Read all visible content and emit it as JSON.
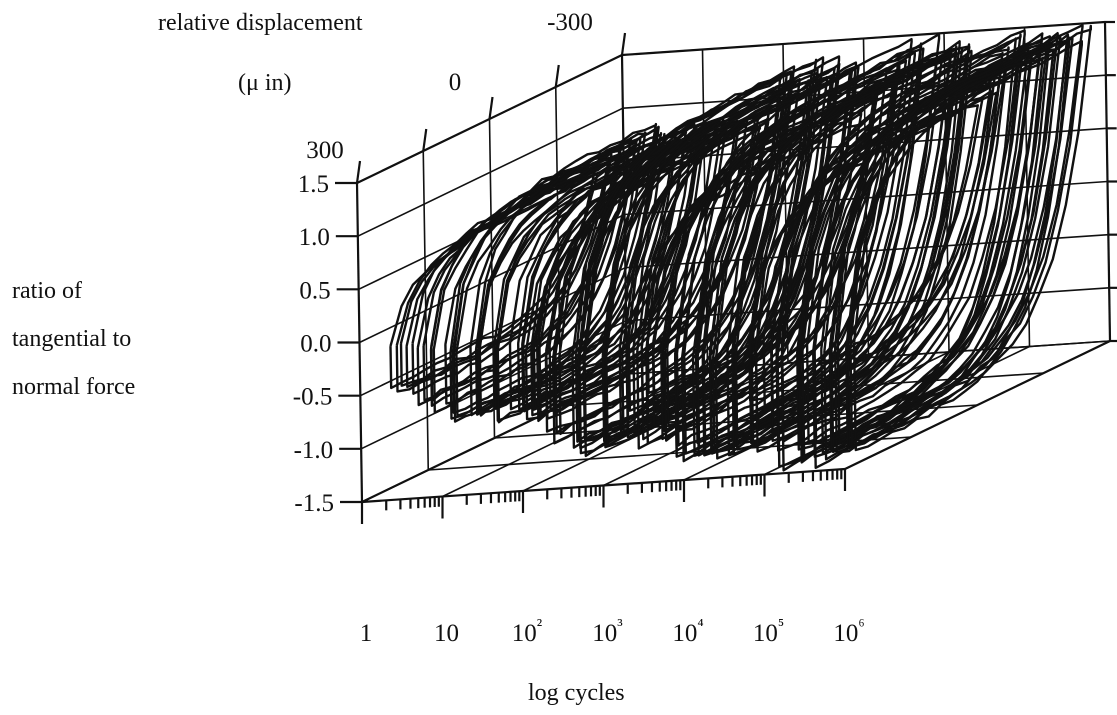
{
  "chart_data": {
    "type": "line",
    "subtype": "3d-hysteresis-loops",
    "title": "",
    "x_axis": {
      "label": "log cycles",
      "scale": "log",
      "tick_labels": [
        "1",
        "10",
        "10²",
        "10³",
        "10⁴",
        "10⁵",
        "10⁶"
      ],
      "range": [
        1,
        1000000
      ]
    },
    "y_axis": {
      "label_lines": [
        "ratio of",
        "tangential to",
        "normal force"
      ],
      "tick_labels": [
        "1.5",
        "1.0",
        "0.5",
        "0.0",
        "-0.5",
        "-1.0",
        "-1.5"
      ],
      "range": [
        -1.5,
        1.5
      ]
    },
    "z_axis": {
      "label": "relative displacement",
      "unit": "(μ in)",
      "tick_labels": [
        "-300",
        "0",
        "300"
      ],
      "range": [
        300,
        -300
      ]
    },
    "groups": [
      {
        "log_start": 0.0,
        "log_end": 1.9,
        "loops": 34,
        "force_ratio_max": 0.9,
        "force_ratio_min": -0.9,
        "displacement_amplitude": 240
      },
      {
        "log_start": 1.9,
        "log_end": 3.2,
        "loops": 30,
        "force_ratio_max": 1.3,
        "force_ratio_min": -1.2,
        "displacement_amplitude": 270
      },
      {
        "log_start": 3.2,
        "log_end": 4.6,
        "loops": 32,
        "force_ratio_max": 1.4,
        "force_ratio_min": -1.3,
        "displacement_amplitude": 280
      },
      {
        "log_start": 4.6,
        "log_end": 5.9,
        "loops": 34,
        "force_ratio_max": 1.4,
        "force_ratio_min": -1.4,
        "displacement_amplitude": 285
      }
    ],
    "grid": true,
    "legend": "none"
  }
}
